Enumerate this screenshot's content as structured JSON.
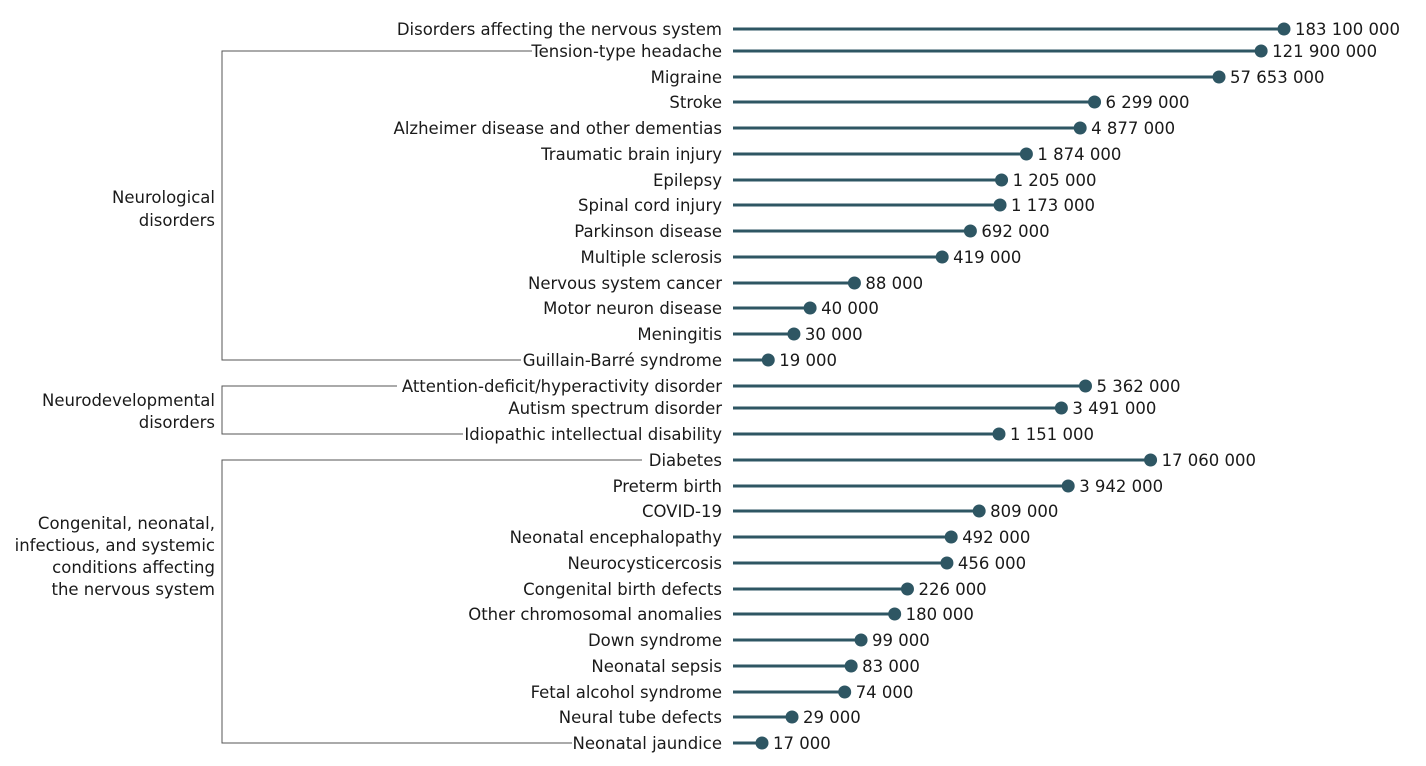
{
  "chart_data": {
    "type": "lollipop",
    "scale": "log",
    "colors": {
      "marker": "#2e5663",
      "bracket": "#555555",
      "text": "#1a1a1a"
    },
    "categories": [
      "Disorders affecting the nervous system",
      "Tension-type headache",
      "Migraine",
      "Stroke",
      "Alzheimer disease and other dementias",
      "Traumatic brain injury",
      "Epilepsy",
      "Spinal cord injury",
      "Parkinson disease",
      "Multiple sclerosis",
      "Nervous system cancer",
      "Motor neuron disease",
      "Meningitis",
      "Guillain-Barré syndrome",
      "Attention-deficit/hyperactivity disorder",
      "Autism spectrum disorder",
      "Idiopathic intellectual disability",
      "Diabetes",
      "Preterm birth",
      "COVID-19",
      "Neonatal encephalopathy",
      "Neurocysticercosis",
      "Congenital birth defects",
      "Other chromosomal anomalies",
      "Down syndrome",
      "Neonatal sepsis",
      "Fetal alcohol syndrome",
      "Neural tube defects",
      "Neonatal jaundice"
    ],
    "values": [
      183100000,
      121900000,
      57653000,
      6299000,
      4877000,
      1874000,
      1205000,
      1173000,
      692000,
      419000,
      88000,
      40000,
      30000,
      19000,
      5362000,
      3491000,
      1151000,
      17060000,
      3942000,
      809000,
      492000,
      456000,
      226000,
      180000,
      99000,
      83000,
      74000,
      29000,
      17000
    ],
    "value_labels": [
      "183 100 000",
      "121 900 000",
      "57 653 000",
      "6 299 000",
      "4 877 000",
      "1 874 000",
      "1 205 000",
      "1 173 000",
      "692 000",
      "419 000",
      "88 000",
      "40 000",
      "30 000",
      "19 000",
      "5 362 000",
      "3 491 000",
      "1 151 000",
      "17 060 000",
      "3 942 000",
      "809 000",
      "492 000",
      "456 000",
      "226 000",
      "180 000",
      "99 000",
      "83 000",
      "74 000",
      "29 000",
      "17 000"
    ],
    "groups": [
      {
        "name": "neurological",
        "label_lines": [
          "Neurological",
          "disorders"
        ],
        "from": 1,
        "to": 13
      },
      {
        "name": "neurodevelopmental",
        "label_lines": [
          "Neurodevelopmental",
          "disorders"
        ],
        "from": 14,
        "to": 16
      },
      {
        "name": "congenital",
        "label_lines": [
          "Congenital, neonatal,",
          "infectious, and systemic",
          "conditions affecting",
          "the nervous system"
        ],
        "from": 17,
        "to": 28
      }
    ]
  }
}
